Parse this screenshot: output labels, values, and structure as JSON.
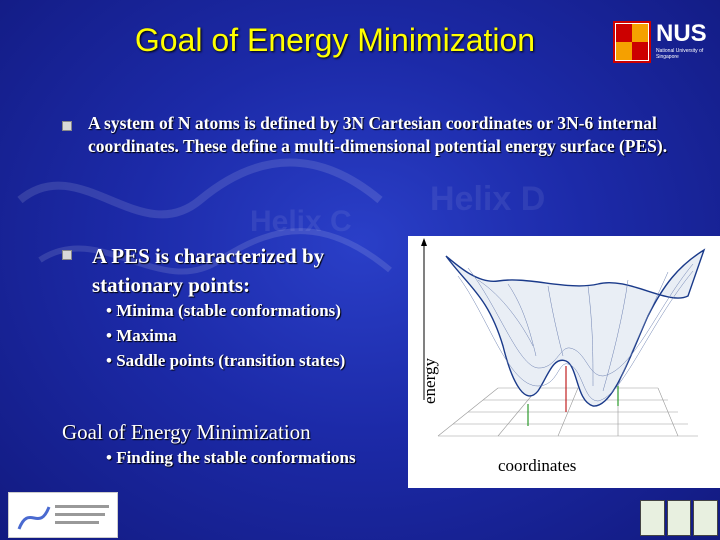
{
  "slide": {
    "title": "Goal of Energy Minimization",
    "logo": {
      "text": "NUS",
      "subtitle": "National University of Singapore"
    },
    "paragraph1": "A system of N atoms is defined by 3N Cartesian coordinates or 3N-6 internal coordinates. These define a multi-dimensional potential energy surface (PES).",
    "paragraph2": "A PES is characterized by stationary points:",
    "sub_bullets": [
      "Minima (stable conformations)",
      "Maxima",
      "Saddle points (transition states)"
    ],
    "goal_heading": "Goal of Energy Minimization",
    "goal_bullet": "Finding the stable conformations",
    "figure": {
      "y_label": "energy",
      "x_label": "coordinates"
    },
    "background_text": [
      "Helix D",
      "Helix C"
    ],
    "colors": {
      "title": "#ffff00",
      "text": "#ffffff",
      "background": "#1c2aa8"
    }
  }
}
